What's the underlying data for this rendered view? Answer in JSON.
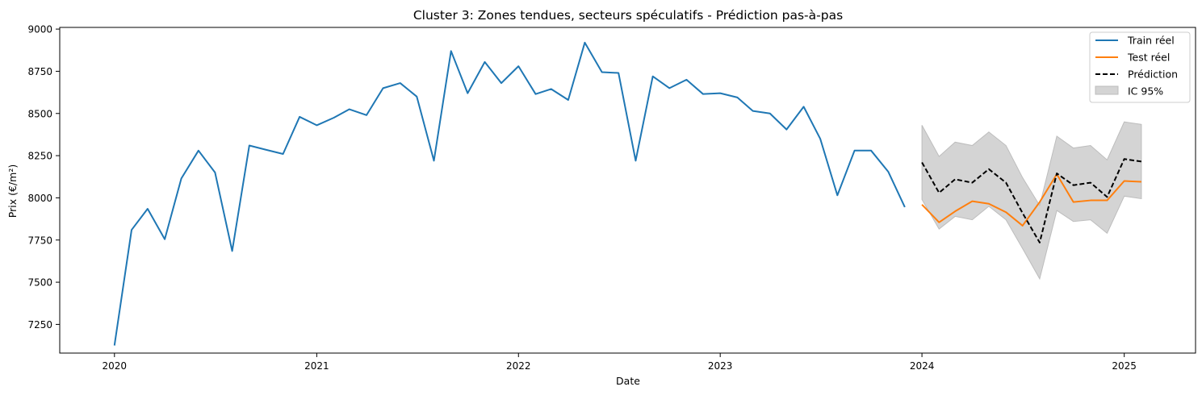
{
  "chart_data": {
    "type": "line",
    "title": "Cluster 3: Zones tendues, secteurs spéculatifs - Prédiction pas-à-pas",
    "xlabel": "Date",
    "ylabel": "Prix (€/m²)",
    "xlim": [
      "2019-09-24",
      "2025-05-10"
    ],
    "ylim": [
      7080,
      9010
    ],
    "x_ticks": [
      "2020",
      "2021",
      "2022",
      "2023",
      "2024",
      "2025"
    ],
    "y_ticks": [
      7250,
      7500,
      7750,
      8000,
      8250,
      8500,
      8750,
      9000
    ],
    "grid": false,
    "legend_position": "top-right",
    "colors": {
      "train": "#1f77b4",
      "test": "#ff7f0e",
      "prediction": "#000000",
      "ci_fill": "#d4d4d4",
      "ci_edge": "#bdbdbd"
    },
    "train": {
      "name": "Train réel",
      "x": [
        "2020-01",
        "2020-02",
        "2020-03",
        "2020-04",
        "2020-05",
        "2020-06",
        "2020-07",
        "2020-08",
        "2020-09",
        "2020-10",
        "2020-11",
        "2020-12",
        "2021-01",
        "2021-02",
        "2021-03",
        "2021-04",
        "2021-05",
        "2021-06",
        "2021-07",
        "2021-08",
        "2021-09",
        "2021-10",
        "2021-11",
        "2021-12",
        "2022-01",
        "2022-02",
        "2022-03",
        "2022-04",
        "2022-05",
        "2022-06",
        "2022-07",
        "2022-08",
        "2022-09",
        "2022-10",
        "2022-11",
        "2022-12",
        "2023-01",
        "2023-02",
        "2023-03",
        "2023-04",
        "2023-05",
        "2023-06",
        "2023-07",
        "2023-08",
        "2023-09",
        "2023-10",
        "2023-11",
        "2023-12"
      ],
      "y": [
        7125,
        7810,
        7935,
        7755,
        8115,
        8280,
        8150,
        7685,
        8310,
        8285,
        8260,
        8480,
        8430,
        8475,
        8525,
        8490,
        8650,
        8680,
        8600,
        8220,
        8870,
        8620,
        8805,
        8680,
        8780,
        8615,
        8645,
        8580,
        8920,
        8745,
        8740,
        8220,
        8720,
        8650,
        8700,
        8615,
        8620,
        8595,
        8515,
        8500,
        8405,
        8540,
        8350,
        8015,
        8280,
        8280,
        8155,
        7945
      ]
    },
    "test": {
      "name": "Test réel",
      "x": [
        "2024-01",
        "2024-02",
        "2024-03",
        "2024-04",
        "2024-05",
        "2024-06",
        "2024-07",
        "2024-08",
        "2024-09",
        "2024-10",
        "2024-11",
        "2024-12",
        "2025-01",
        "2025-02"
      ],
      "y": [
        7960,
        7855,
        7920,
        7980,
        7965,
        7915,
        7835,
        7975,
        8140,
        7975,
        7985,
        7985,
        8100,
        8095
      ]
    },
    "prediction": {
      "name": "Prédiction",
      "x": [
        "2024-01",
        "2024-02",
        "2024-03",
        "2024-04",
        "2024-05",
        "2024-06",
        "2024-07",
        "2024-08",
        "2024-09",
        "2024-10",
        "2024-11",
        "2024-12",
        "2025-01",
        "2025-02"
      ],
      "y": [
        8210,
        8030,
        8110,
        8090,
        8170,
        8090,
        7910,
        7735,
        8145,
        8075,
        8090,
        8005,
        8230,
        8215
      ]
    },
    "ci": {
      "name": "IC 95%",
      "x": [
        "2024-01",
        "2024-02",
        "2024-03",
        "2024-04",
        "2024-05",
        "2024-06",
        "2024-07",
        "2024-08",
        "2024-09",
        "2024-10",
        "2024-11",
        "2024-12",
        "2025-01",
        "2025-02"
      ],
      "upper": [
        8430,
        8245,
        8330,
        8310,
        8390,
        8310,
        8120,
        7955,
        8365,
        8295,
        8310,
        8225,
        8450,
        8435
      ],
      "lower": [
        7990,
        7815,
        7890,
        7870,
        7950,
        7870,
        7700,
        7520,
        7925,
        7860,
        7870,
        7790,
        8010,
        7995
      ]
    },
    "legend": [
      "Train réel",
      "Test réel",
      "Prédiction",
      "IC 95%"
    ]
  }
}
